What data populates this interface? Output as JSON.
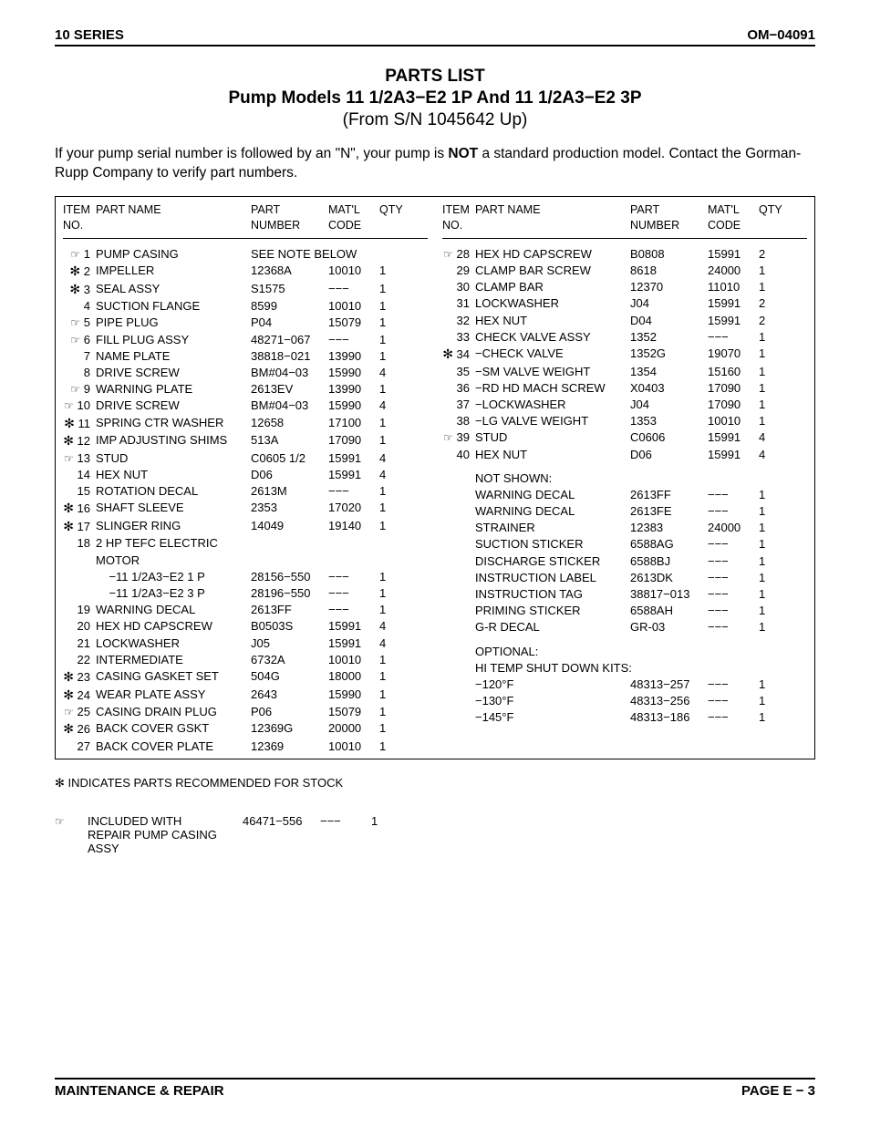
{
  "header": {
    "left": "10 SERIES",
    "right": "OM−04091"
  },
  "titles": {
    "t1": "PARTS LIST",
    "t2": "Pump Models 11 1/2A3−E2 1P And 11 1/2A3−E2 3P",
    "t3": "(From S/N 1045642 Up)"
  },
  "intro_pre": "If your pump serial number is followed by an \"N\", your pump is ",
  "intro_bold": "NOT",
  "intro_post": " a standard production model. Contact the Gorman-Rupp Company to verify part numbers.",
  "col_headers": {
    "c0a": "ITEM",
    "c0b": "NO.",
    "c1": "PART NAME",
    "c2a": "PART",
    "c2b": "NUMBER",
    "c3a": "MAT'L",
    "c3b": "CODE",
    "c4": "QTY"
  },
  "left_rows": [
    {
      "sym": "hand",
      "no": "1",
      "name": "PUMP CASING",
      "pn": "SEE NOTE BELOW",
      "mc": "",
      "qty": ""
    },
    {
      "sym": "star",
      "no": "2",
      "name": "IMPELLER",
      "pn": "12368A",
      "mc": "10010",
      "qty": "1"
    },
    {
      "sym": "star",
      "no": "3",
      "name": "SEAL ASSY",
      "pn": "S1575",
      "mc": "−−−",
      "qty": "1"
    },
    {
      "sym": "",
      "no": "4",
      "name": "SUCTION FLANGE",
      "pn": "8599",
      "mc": "10010",
      "qty": "1"
    },
    {
      "sym": "hand",
      "no": "5",
      "name": "PIPE PLUG",
      "pn": "P04",
      "mc": "15079",
      "qty": "1"
    },
    {
      "sym": "hand",
      "no": "6",
      "name": "FILL PLUG ASSY",
      "pn": "48271−067",
      "mc": "−−−",
      "qty": "1"
    },
    {
      "sym": "",
      "no": "7",
      "name": "NAME PLATE",
      "pn": "38818−021",
      "mc": "13990",
      "qty": "1"
    },
    {
      "sym": "",
      "no": "8",
      "name": "DRIVE SCREW",
      "pn": "BM#04−03",
      "mc": "15990",
      "qty": "4"
    },
    {
      "sym": "hand",
      "no": "9",
      "name": "WARNING PLATE",
      "pn": "2613EV",
      "mc": "13990",
      "qty": "1"
    },
    {
      "sym": "hand",
      "no": "10",
      "name": "DRIVE SCREW",
      "pn": "BM#04−03",
      "mc": "15990",
      "qty": "4"
    },
    {
      "sym": "star",
      "no": "11",
      "name": "SPRING CTR WASHER",
      "pn": "12658",
      "mc": "17100",
      "qty": "1"
    },
    {
      "sym": "star",
      "no": "12",
      "name": "IMP ADJUSTING SHIMS",
      "pn": "513A",
      "mc": "17090",
      "qty": "1"
    },
    {
      "sym": "hand",
      "no": "13",
      "name": "STUD",
      "pn": "C0605 1/2",
      "mc": "15991",
      "qty": "4"
    },
    {
      "sym": "",
      "no": "14",
      "name": "HEX NUT",
      "pn": "D06",
      "mc": "15991",
      "qty": "4"
    },
    {
      "sym": "",
      "no": "15",
      "name": "ROTATION DECAL",
      "pn": "2613M",
      "mc": "−−−",
      "qty": "1"
    },
    {
      "sym": "star",
      "no": "16",
      "name": "SHAFT SLEEVE",
      "pn": "2353",
      "mc": "17020",
      "qty": "1"
    },
    {
      "sym": "star",
      "no": "17",
      "name": "SLINGER RING",
      "pn": "14049",
      "mc": "19140",
      "qty": "1"
    },
    {
      "sym": "",
      "no": "18",
      "name": "2 HP TEFC ELECTRIC MOTOR",
      "pn": "",
      "mc": "",
      "qty": ""
    },
    {
      "sym": "",
      "no": "",
      "name": "  −11 1/2A3−E2 1 P",
      "pn": "28156−550",
      "mc": "−−−",
      "qty": "1"
    },
    {
      "sym": "",
      "no": "",
      "name": "  −11 1/2A3−E2 3 P",
      "pn": "28196−550",
      "mc": "−−−",
      "qty": "1"
    },
    {
      "sym": "",
      "no": "19",
      "name": "WARNING DECAL",
      "pn": "2613FF",
      "mc": "−−−",
      "qty": "1"
    },
    {
      "sym": "",
      "no": "20",
      "name": "HEX HD CAPSCREW",
      "pn": "B0503S",
      "mc": "15991",
      "qty": "4"
    },
    {
      "sym": "",
      "no": "21",
      "name": "LOCKWASHER",
      "pn": "J05",
      "mc": "15991",
      "qty": "4"
    },
    {
      "sym": "",
      "no": "22",
      "name": "INTERMEDIATE",
      "pn": "6732A",
      "mc": "10010",
      "qty": "1"
    },
    {
      "sym": "star",
      "no": "23",
      "name": "CASING GASKET SET",
      "pn": "504G",
      "mc": "18000",
      "qty": "1"
    },
    {
      "sym": "star",
      "no": "24",
      "name": "WEAR PLATE ASSY",
      "pn": "2643",
      "mc": "15990",
      "qty": "1"
    },
    {
      "sym": "hand",
      "no": "25",
      "name": "CASING DRAIN PLUG",
      "pn": "P06",
      "mc": "15079",
      "qty": "1"
    },
    {
      "sym": "star",
      "no": "26",
      "name": "BACK COVER GSKT",
      "pn": "12369G",
      "mc": "20000",
      "qty": "1"
    },
    {
      "sym": "",
      "no": "27",
      "name": "BACK COVER PLATE",
      "pn": "12369",
      "mc": "10010",
      "qty": "1"
    }
  ],
  "right_rows": [
    {
      "sym": "hand",
      "no": "28",
      "name": "HEX HD CAPSCREW",
      "pn": "B0808",
      "mc": "15991",
      "qty": "2"
    },
    {
      "sym": "",
      "no": "29",
      "name": "CLAMP BAR SCREW",
      "pn": "8618",
      "mc": "24000",
      "qty": "1"
    },
    {
      "sym": "",
      "no": "30",
      "name": "CLAMP BAR",
      "pn": "12370",
      "mc": "11010",
      "qty": "1"
    },
    {
      "sym": "",
      "no": "31",
      "name": "LOCKWASHER",
      "pn": "J04",
      "mc": "15991",
      "qty": "2"
    },
    {
      "sym": "",
      "no": "32",
      "name": "HEX NUT",
      "pn": "D04",
      "mc": "15991",
      "qty": "2"
    },
    {
      "sym": "",
      "no": "33",
      "name": "CHECK VALVE ASSY",
      "pn": "1352",
      "mc": "−−−",
      "qty": "1"
    },
    {
      "sym": "star",
      "no": "34",
      "name": "−CHECK VALVE",
      "pn": "1352G",
      "mc": "19070",
      "qty": "1"
    },
    {
      "sym": "",
      "no": "35",
      "name": "−SM VALVE WEIGHT",
      "pn": "1354",
      "mc": "15160",
      "qty": "1"
    },
    {
      "sym": "",
      "no": "36",
      "name": "−RD HD MACH SCREW",
      "pn": "X0403",
      "mc": "17090",
      "qty": "1"
    },
    {
      "sym": "",
      "no": "37",
      "name": "−LOCKWASHER",
      "pn": "J04",
      "mc": "17090",
      "qty": "1"
    },
    {
      "sym": "",
      "no": "38",
      "name": "−LG VALVE WEIGHT",
      "pn": "1353",
      "mc": "10010",
      "qty": "1"
    },
    {
      "sym": "hand",
      "no": "39",
      "name": "STUD",
      "pn": "C0606",
      "mc": "15991",
      "qty": "4"
    },
    {
      "sym": "",
      "no": "40",
      "name": "HEX NUT",
      "pn": "D06",
      "mc": "15991",
      "qty": "4"
    }
  ],
  "not_shown_label": "NOT SHOWN:",
  "not_shown": [
    {
      "name": "WARNING DECAL",
      "pn": "2613FF",
      "mc": "−−−",
      "qty": "1"
    },
    {
      "name": "WARNING DECAL",
      "pn": "2613FE",
      "mc": "−−−",
      "qty": "1"
    },
    {
      "name": "STRAINER",
      "pn": "12383",
      "mc": "24000",
      "qty": "1"
    },
    {
      "name": "SUCTION STICKER",
      "pn": "6588AG",
      "mc": "−−−",
      "qty": "1"
    },
    {
      "name": "DISCHARGE STICKER",
      "pn": "6588BJ",
      "mc": "−−−",
      "qty": "1"
    },
    {
      "name": "INSTRUCTION LABEL",
      "pn": "2613DK",
      "mc": "−−−",
      "qty": "1"
    },
    {
      "name": "INSTRUCTION TAG",
      "pn": "38817−013",
      "mc": "−−−",
      "qty": "1"
    },
    {
      "name": "PRIMING STICKER",
      "pn": "6588AH",
      "mc": "−−−",
      "qty": "1"
    },
    {
      "name": "G-R DECAL",
      "pn": "GR-03",
      "mc": "−−−",
      "qty": "1"
    }
  ],
  "optional_label": "OPTIONAL:",
  "optional_sub": "HI TEMP SHUT DOWN KITS:",
  "optional": [
    {
      "name": "−120°F",
      "pn": "48313−257",
      "mc": "−−−",
      "qty": "1"
    },
    {
      "name": "−130°F",
      "pn": "48313−256",
      "mc": "−−−",
      "qty": "1"
    },
    {
      "name": "−145°F",
      "pn": "48313−186",
      "mc": "−−−",
      "qty": "1"
    }
  ],
  "footnote_star": "✻ INDICATES PARTS RECOMMENDED FOR STOCK",
  "included": {
    "l1": "INCLUDED WITH",
    "l2": "REPAIR PUMP CASING ASSY",
    "pn": "46471−556",
    "mc": "−−−",
    "qty": "1"
  },
  "footer": {
    "left": "MAINTENANCE & REPAIR",
    "right": "PAGE E − 3"
  }
}
